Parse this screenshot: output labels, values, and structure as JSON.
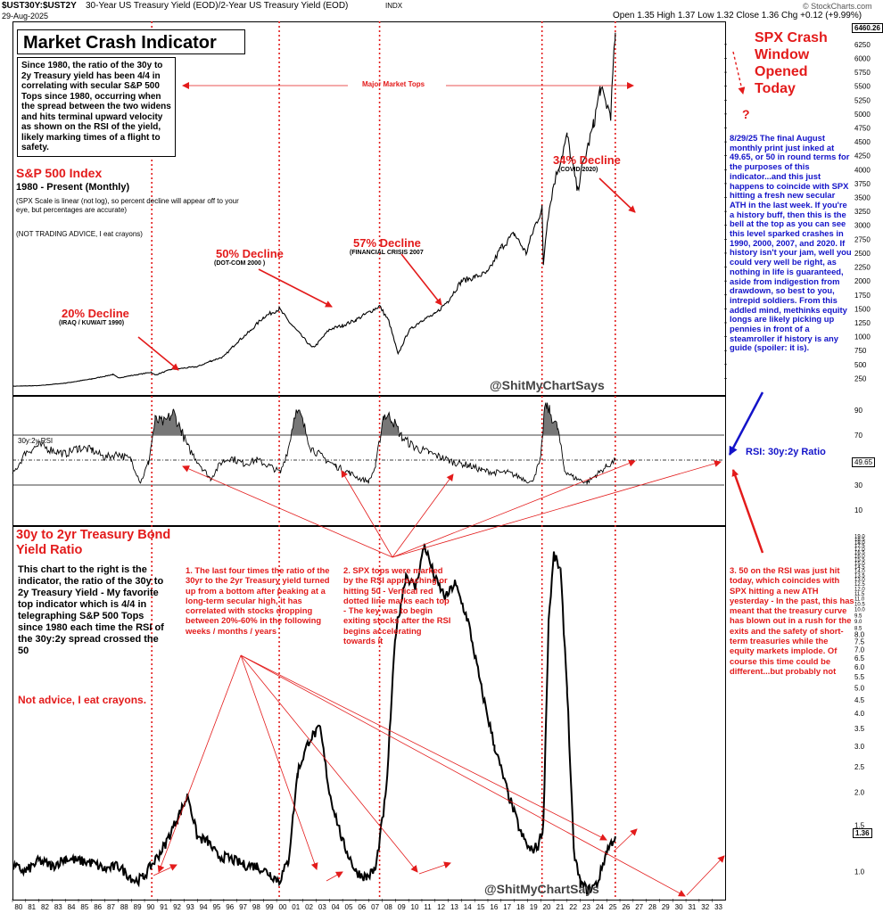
{
  "header": {
    "symbol": "$UST30Y:$UST2Y",
    "description": "30-Year US Treasury Yield (EOD)/2-Year US Treasury Yield (EOD)",
    "exchange": "INDX",
    "date": "29-Aug-2025",
    "ohlc": "Open 1.35  High 1.37  Low 1.32  Close 1.36  Chg +0.12 (+9.99%)",
    "source": "© StockCharts.com"
  },
  "title": "Market Crash Indicator",
  "intro": "Since 1980, the ratio of the 30y to 2y Treasury yield has been 4/4 in correlating with secular S&P 500 Tops since 1980, occurring when the spread between the two widens and hits terminal upward velocity as shown on the RSI of the yield, likely marking times of a flight to safety.",
  "spx_label": {
    "title": "S&P 500 Index",
    "range": "1980 - Present (Monthly)",
    "note": "(SPX Scale is linear (not log), so percent decline will appear off to your eye, but percentages are accurate)",
    "disclaimer": "(NOT TRADING ADVICE, I eat crayons)"
  },
  "major_tops": "Major Market Tops",
  "declines": [
    {
      "pct": "20% Decline",
      "event": "(IRAQ / KUWAIT 1990)"
    },
    {
      "pct": "50% Decline",
      "event": "(DOT-COM 2000 )"
    },
    {
      "pct": "57% Decline",
      "event": "(FINANCIAL CRISIS 2007"
    },
    {
      "pct": "34% Decline",
      "event": "(COVID 2020)"
    }
  ],
  "crash_window": "SPX Crash Window Opened Today",
  "question": "?",
  "blue_note": "8/29/25 The final August monthly print just inked at 49.65, or 50 in round terms for the purposes of this indicator...and this just happens to coincide with SPX hitting a fresh new secular ATH in the last week. If you're a history buff, then this is the bell at the top as you can see this level sparked crashes in 1990, 2000, 2007, and 2020. If history isn't your jam, well you could very well be right, as nothing in life is guaranteed, aside from indigestion from drawdown, so best to you, intrepid soldiers. From this addled mind, methinks equity longs are likely picking up pennies in front of a steamroller if history is any guide (spoiler: it is).",
  "watermark": "@ShitMyChartSays",
  "rsi_label": "30y:2y RSI",
  "rsi_ratio_label": "RSI: 30y:2y Ratio",
  "rsi_last": "49.65",
  "ratio_title": "30y to 2yr Treasury Bond Yield Ratio",
  "ratio_desc": "This chart to the right is the indicator, the ratio of the 30y to 2y Treasury Yield - My favorite top indicator which is 4/4 in telegraphing S&P 500 Tops since 1980 each time the RSI of the 30y:2y spread crossed the 50",
  "not_advice": "Not advice, I eat crayons.",
  "note1": "1. The last four times the ratio of the 30yr to the 2yr Treasury yield turned up from a bottom after peaking at a long-term secular high, it has correlated with stocks dropping between 20%-60% in the following weeks / months / years",
  "note2": "2. SPX tops were marked by the RSI approaching or hitting 50 - Vertical red dotted line marks each top - The key was to begin exiting stocks after the RSI begins accelerating towards it",
  "note3": "3. 50 on the RSI was just hit today, which coincides with SPX hitting a new ATH yesterday - In the past, this has meant that the treasury curve has blown out in a rush for the exits and the safety of short-term treasuries while the equity markets implode. Of course this time could be different...but probably not",
  "ratio_last": "1.36",
  "spx_last": "6460.26",
  "colors": {
    "red": "#e31b1b",
    "blue": "#1313c9",
    "price": "#000000",
    "rsi_fill": "#777777"
  },
  "chart_data": [
    {
      "type": "line",
      "title": "S&P 500 Index",
      "series": [
        {
          "name": "S&P 500 Index",
          "x": [
            1980,
            1982,
            1984,
            1986,
            1987.6,
            1988,
            1990.5,
            1990.8,
            1992,
            1994,
            1995,
            1996,
            1997,
            1998,
            1999,
            2000.2,
            2001,
            2002.7,
            2003,
            2004,
            2005,
            2006,
            2007.8,
            2008.5,
            2009.2,
            2010,
            2011,
            2012,
            2013,
            2014,
            2015,
            2016,
            2017,
            2018,
            2018.9,
            2019.5,
            2020.1,
            2020.2,
            2020.5,
            2021,
            2022,
            2022.8,
            2023,
            2024,
            2024.5,
            2025.3,
            2025.65
          ],
          "values": [
            110,
            120,
            165,
            240,
            320,
            260,
            360,
            310,
            410,
            460,
            560,
            640,
            900,
            1100,
            1350,
            1500,
            1250,
            800,
            850,
            1130,
            1200,
            1300,
            1550,
            1280,
            680,
            1100,
            1300,
            1400,
            1650,
            2000,
            2070,
            2150,
            2600,
            2850,
            2500,
            2950,
            3300,
            2300,
            3100,
            3750,
            4600,
            3600,
            3900,
            4800,
            5450,
            5000,
            6460.26
          ]
        }
      ],
      "ylabel": "",
      "ylim": [
        0,
        6600
      ],
      "yticks": [
        250,
        500,
        750,
        1000,
        1250,
        1500,
        1750,
        2000,
        2250,
        2500,
        2750,
        3000,
        3250,
        3500,
        3750,
        4000,
        4250,
        4500,
        4750,
        5000,
        5250,
        5500,
        5750,
        6000,
        6250
      ]
    },
    {
      "type": "area",
      "title": "30y:2y RSI",
      "series": [
        {
          "name": "30y:2y RSI",
          "x": [
            1980,
            1981,
            1982,
            1983,
            1984,
            1985,
            1986,
            1987,
            1988,
            1989,
            1989.7,
            1990.3,
            1990.8,
            1991.5,
            1992.2,
            1992.8,
            1993.3,
            1994.5,
            1995,
            1995.8,
            1996.5,
            1997.5,
            1998.5,
            1999.5,
            2000.3,
            2000.9,
            2001.4,
            2001.8,
            2002.6,
            2003.5,
            2004.5,
            2005.5,
            2006.3,
            2007,
            2007.5,
            2008.1,
            2008.7,
            2009.5,
            2010.5,
            2011.5,
            2012.5,
            2013.5,
            2014.5,
            2015.5,
            2016.5,
            2017.5,
            2018.5,
            2019.3,
            2020.0,
            2020.3,
            2020.5,
            2020.7,
            2021.3,
            2021.8,
            2022.5,
            2023.5,
            2024.2,
            2025,
            2025.65
          ],
          "values": [
            38,
            56,
            62,
            58,
            55,
            60,
            58,
            52,
            55,
            50,
            32,
            48,
            82,
            80,
            88,
            73,
            60,
            42,
            35,
            48,
            52,
            47,
            50,
            45,
            40,
            60,
            88,
            86,
            60,
            52,
            45,
            40,
            35,
            33,
            45,
            86,
            84,
            68,
            60,
            56,
            52,
            48,
            46,
            42,
            40,
            40,
            36,
            32,
            50,
            92,
            94,
            88,
            75,
            42,
            36,
            32,
            38,
            45,
            49.65
          ]
        }
      ],
      "ylim": [
        0,
        100
      ],
      "yticks": [
        10,
        30,
        50,
        70,
        90
      ],
      "levels": [
        30,
        50,
        70
      ]
    },
    {
      "type": "line",
      "title": "$UST30Y:$UST2Y",
      "series": [
        {
          "name": "$UST30Y:$UST2Y",
          "x": [
            1980,
            1981,
            1982,
            1983,
            1984,
            1985,
            1986,
            1987,
            1988,
            1989.3,
            1989.9,
            1990.5,
            1991.5,
            1992.5,
            1993.3,
            1994,
            1994.8,
            1995.5,
            1996.5,
            1997.5,
            1998.5,
            1999.5,
            2000.2,
            2000.9,
            2001.6,
            2002.5,
            2003.3,
            2004,
            2005,
            2006,
            2006.8,
            2007.5,
            2008.3,
            2009,
            2009.8,
            2010.5,
            2011.2,
            2012,
            2012.8,
            2013.5,
            2014.5,
            2015.5,
            2016.5,
            2017.5,
            2018.5,
            2019.2,
            2019.8,
            2020.2,
            2020.6,
            2021,
            2021.5,
            2022,
            2022.5,
            2023,
            2023.6,
            2024.3,
            2025,
            2025.65
          ],
          "values": [
            1.05,
            1.0,
            1.1,
            1.05,
            1.12,
            1.1,
            1.08,
            1.02,
            1.05,
            0.92,
            0.95,
            1.05,
            1.25,
            1.6,
            1.95,
            1.35,
            1.3,
            1.15,
            1.12,
            1.06,
            1.05,
            0.98,
            0.92,
            1.1,
            2.4,
            3.2,
            3.5,
            2.0,
            1.3,
            1.0,
            0.95,
            1.02,
            2.0,
            8.0,
            13.5,
            12.0,
            17.5,
            13.0,
            11.0,
            12.5,
            9.0,
            5.0,
            3.0,
            2.0,
            1.4,
            1.2,
            1.25,
            1.5,
            9.0,
            16.0,
            14.0,
            5.0,
            1.2,
            0.9,
            0.85,
            0.9,
            1.2,
            1.36
          ]
        }
      ],
      "ylim": [
        0.8,
        20
      ],
      "yscale": "log",
      "yticks": [
        1.0,
        1.5,
        2.0,
        2.5,
        3.0,
        3.5,
        4.0,
        4.5,
        5.0,
        5.5,
        6.0,
        6.5,
        7.0,
        7.5,
        8.0,
        8.5,
        9.0,
        9.5,
        10.0,
        10.5,
        11.0,
        11.5,
        12.0,
        12.5,
        13.0,
        13.5,
        14.0,
        14.5,
        15.0,
        15.5,
        16.0,
        16.5,
        17.0,
        17.5,
        18.0,
        18.5,
        19.0
      ],
      "xticks": [
        "80",
        "81",
        "82",
        "83",
        "84",
        "85",
        "86",
        "87",
        "88",
        "89",
        "90",
        "91",
        "92",
        "93",
        "94",
        "95",
        "96",
        "97",
        "98",
        "99",
        "00",
        "01",
        "02",
        "03",
        "04",
        "05",
        "06",
        "07",
        "08",
        "09",
        "10",
        "11",
        "12",
        "13",
        "14",
        "15",
        "16",
        "17",
        "18",
        "19",
        "20",
        "21",
        "22",
        "23",
        "24",
        "25",
        "26",
        "27",
        "28",
        "29",
        "30",
        "31",
        "32",
        "33"
      ],
      "top_markers": [
        1990.55,
        2000.2,
        2007.8,
        2020.1,
        2025.65
      ]
    }
  ]
}
